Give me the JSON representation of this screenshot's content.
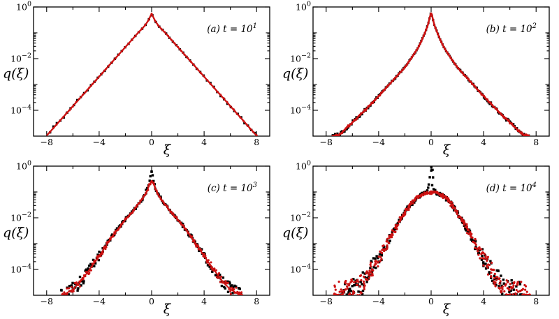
{
  "figure": {
    "background": "#ffffff",
    "axis_color": "#000000",
    "colors": {
      "black": "#000000",
      "red": "#cc1111"
    }
  },
  "chart_data": [
    {
      "type": "scatter",
      "panel_label": {
        "text": "(a) t = 10",
        "exp": "1"
      },
      "xlabel": "ξ",
      "ylabel": "q(ξ)",
      "xlim": [
        -9,
        9
      ],
      "ylim": [
        1e-05,
        1
      ],
      "x_major_ticks": [
        -8,
        -4,
        0,
        4,
        8
      ],
      "x_minor_ticks": [
        -6,
        -2,
        2,
        6
      ],
      "y_major_tick_exponents": [
        0,
        -2,
        -4
      ],
      "y_medium_tick_exponents": [
        -1,
        -3
      ],
      "y_minor_decades": [
        -2,
        -4
      ],
      "symmetric": true,
      "legend": "none",
      "series": [
        {
          "name": "black-squares",
          "color_key": "black",
          "marker": "square",
          "marker_size": 3.4,
          "step": 0.26,
          "line": false,
          "noise": [
            0.015,
            0.05
          ],
          "x_jitter": 0,
          "xi": [
            0,
            0.25,
            0.5,
            0.75,
            1,
            1.5,
            2,
            2.5,
            3,
            3.5,
            4,
            4.5,
            5,
            5.5,
            6,
            6.5,
            7,
            7.5,
            8
          ],
          "q": [
            0.55,
            0.3,
            0.195,
            0.14,
            0.105,
            0.054,
            0.028,
            0.0145,
            0.0075,
            0.0039,
            0.002,
            0.00104,
            0.00054,
            0.00028,
            0.000145,
            7.5e-05,
            3.9e-05,
            2e-05,
            1.05e-05
          ]
        },
        {
          "name": "red-line-dots",
          "color_key": "red",
          "marker": "dot",
          "marker_size": 1.5,
          "step": 0.25,
          "line": true,
          "line_width": 2.3,
          "noise": [
            0.008,
            0.02
          ],
          "x_jitter": 0,
          "xi": [
            0,
            0.25,
            0.5,
            0.75,
            1,
            1.5,
            2,
            2.5,
            3,
            3.5,
            4,
            4.5,
            5,
            5.5,
            6,
            6.5,
            7,
            7.5,
            8
          ],
          "q": [
            0.55,
            0.3,
            0.195,
            0.14,
            0.105,
            0.054,
            0.028,
            0.0145,
            0.0075,
            0.0039,
            0.002,
            0.00104,
            0.00054,
            0.00028,
            0.000145,
            7.5e-05,
            3.9e-05,
            2e-05,
            1.05e-05
          ]
        }
      ]
    },
    {
      "type": "scatter",
      "panel_label": {
        "text": "(b) t = 10",
        "exp": "2"
      },
      "xlabel": "ξ",
      "ylabel": "q(ξ)",
      "xlim": [
        -9,
        9
      ],
      "ylim": [
        1e-05,
        1
      ],
      "x_major_ticks": [
        -8,
        -4,
        0,
        4,
        8
      ],
      "x_minor_ticks": [
        -6,
        -2,
        2,
        6
      ],
      "y_major_tick_exponents": [
        0,
        -2,
        -4
      ],
      "y_medium_tick_exponents": [
        -1,
        -3
      ],
      "y_minor_decades": [
        -2,
        -4
      ],
      "symmetric": true,
      "legend": "none",
      "series": [
        {
          "name": "black-squares",
          "color_key": "black",
          "marker": "square",
          "marker_size": 3.2,
          "step": 0.09,
          "line": false,
          "noise": [
            0.02,
            0.06
          ],
          "x_jitter": 0,
          "xi": [
            0,
            0.1,
            0.25,
            0.5,
            0.75,
            1,
            1.5,
            2,
            2.5,
            3,
            3.5,
            4,
            4.5,
            5,
            5.5,
            6,
            6.5,
            7,
            7.5
          ],
          "q": [
            0.62,
            0.4,
            0.2,
            0.092,
            0.047,
            0.026,
            0.0105,
            0.0046,
            0.0024,
            0.00128,
            0.00067,
            0.00035,
            0.00019,
            0.000105,
            6e-05,
            3.4e-05,
            1.95e-05,
            1.1e-05,
            1e-05
          ]
        },
        {
          "name": "red-line-dots",
          "color_key": "red",
          "marker": "dot",
          "marker_size": 1.5,
          "step": 0.09,
          "line": true,
          "line_width": 2.5,
          "noise": [
            0.012,
            0.04
          ],
          "x_jitter": 0,
          "xi": [
            0,
            0.1,
            0.25,
            0.5,
            0.75,
            1,
            1.5,
            2,
            2.5,
            3,
            3.5,
            4,
            4.5,
            5,
            5.5,
            6,
            6.5,
            7,
            7.5
          ],
          "q": [
            0.62,
            0.4,
            0.2,
            0.092,
            0.047,
            0.026,
            0.0105,
            0.0046,
            0.0024,
            0.00128,
            0.00067,
            0.00035,
            0.00019,
            0.000105,
            6e-05,
            3.4e-05,
            1.95e-05,
            1.1e-05,
            1e-05
          ]
        }
      ]
    },
    {
      "type": "scatter",
      "panel_label": {
        "text": "(c) t = 10",
        "exp": "3"
      },
      "xlabel": "ξ",
      "ylabel": "q(ξ)",
      "xlim": [
        -9,
        9
      ],
      "ylim": [
        1e-05,
        1
      ],
      "x_major_ticks": [
        -8,
        -4,
        0,
        4,
        8
      ],
      "x_minor_ticks": [
        -6,
        -2,
        2,
        6
      ],
      "y_major_tick_exponents": [
        0,
        -2,
        -4
      ],
      "y_medium_tick_exponents": [
        -1,
        -3
      ],
      "y_minor_decades": [
        -2,
        -4
      ],
      "symmetric": true,
      "legend": "none",
      "series": [
        {
          "name": "black-squares",
          "color_key": "black",
          "marker": "square",
          "marker_size": 3.4,
          "step": 0.07,
          "line": false,
          "noise": [
            0.045,
            0.22
          ],
          "x_jitter": 0.04,
          "xi": [
            0,
            0.08,
            0.18,
            0.3,
            0.5,
            0.75,
            1,
            1.5,
            2,
            2.5,
            3,
            3.5,
            4,
            4.5,
            5,
            5.5,
            6,
            6.5,
            6.9
          ],
          "q": [
            0.72,
            0.5,
            0.27,
            0.14,
            0.082,
            0.05,
            0.034,
            0.016,
            0.0085,
            0.0041,
            0.0019,
            0.0008,
            0.00033,
            0.000145,
            6.5e-05,
            3e-05,
            1.7e-05,
            1.2e-05,
            1e-05
          ]
        },
        {
          "name": "red-line-dots",
          "color_key": "red",
          "marker": "dot",
          "marker_size": 1.5,
          "step": 0.06,
          "line": true,
          "line_width": 2.0,
          "noise": [
            0.035,
            0.16
          ],
          "x_jitter": 0.03,
          "xi": [
            0,
            0.08,
            0.18,
            0.3,
            0.5,
            0.75,
            1,
            1.5,
            2,
            2.5,
            3,
            3.5,
            4,
            4.5,
            5,
            5.5,
            6,
            6.5,
            6.9
          ],
          "q": [
            0.27,
            0.235,
            0.185,
            0.125,
            0.08,
            0.05,
            0.034,
            0.016,
            0.0085,
            0.0041,
            0.0019,
            0.0008,
            0.00033,
            0.000145,
            6.5e-05,
            3e-05,
            1.7e-05,
            1.2e-05,
            1e-05
          ]
        }
      ]
    },
    {
      "type": "scatter",
      "panel_label": {
        "text": "(d) t = 10",
        "exp": "4"
      },
      "xlabel": "ξ",
      "ylabel": "q(ξ)",
      "xlim": [
        -9,
        9
      ],
      "ylim": [
        1e-05,
        1
      ],
      "x_major_ticks": [
        -8,
        -4,
        0,
        4,
        8
      ],
      "x_minor_ticks": [
        -6,
        -2,
        2,
        6
      ],
      "y_major_tick_exponents": [
        0,
        -2,
        -4
      ],
      "y_medium_tick_exponents": [
        -1,
        -3
      ],
      "y_minor_decades": [
        -2,
        -4
      ],
      "symmetric": true,
      "legend": "none",
      "series": [
        {
          "name": "black-squares",
          "color_key": "black",
          "marker": "square",
          "marker_size": 3.4,
          "step": 0.05,
          "line": false,
          "noise": [
            0.06,
            0.45
          ],
          "x_jitter": 0.07,
          "xi": [
            0,
            0.05,
            0.1,
            0.15,
            0.22,
            0.35,
            0.5,
            1,
            1.5,
            2,
            2.5,
            3,
            3.5,
            4,
            4.5,
            5,
            5.5,
            6,
            6.5,
            6.9
          ],
          "q": [
            1.0,
            0.72,
            0.38,
            0.19,
            0.115,
            0.096,
            0.091,
            0.066,
            0.036,
            0.016,
            0.0063,
            0.0022,
            0.00076,
            0.00027,
            0.000105,
            4e-05,
            2e-05,
            1.4e-05,
            1.2e-05,
            1.1e-05
          ]
        },
        {
          "name": "red-dots",
          "color_key": "red",
          "marker": "dot",
          "marker_size": 1.6,
          "step": 0.035,
          "line": false,
          "noise": [
            0.05,
            0.42
          ],
          "x_jitter": 0.1,
          "xi": [
            0,
            0.25,
            0.5,
            1,
            1.5,
            2,
            2.5,
            3,
            3.5,
            4,
            4.5,
            5,
            5.5,
            6,
            6.5,
            7,
            7.5
          ],
          "q": [
            0.095,
            0.093,
            0.089,
            0.066,
            0.036,
            0.016,
            0.0063,
            0.0022,
            0.00076,
            0.00027,
            0.000105,
            4e-05,
            2e-05,
            1.5e-05,
            1.3e-05,
            1.2e-05,
            1.1e-05
          ]
        }
      ]
    }
  ]
}
